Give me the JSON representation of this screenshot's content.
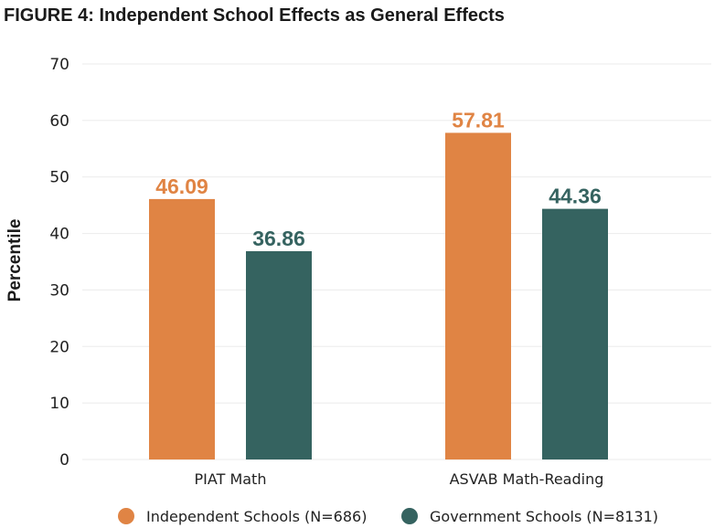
{
  "chart_data": {
    "type": "bar",
    "title": "FIGURE 4: Independent School Effects as General Effects",
    "ylabel": "Percentile",
    "xlabel": "",
    "ylim": [
      0,
      70
    ],
    "yticks": [
      0,
      10,
      20,
      30,
      40,
      50,
      60,
      70
    ],
    "grid": true,
    "legend_position": "bottom",
    "categories": [
      "PIAT Math",
      "ASVAB Math-Reading"
    ],
    "series": [
      {
        "name": "Independent Schools (N=686)",
        "color": "#E08444",
        "values": [
          46.09,
          57.81
        ]
      },
      {
        "name": "Government Schools (N=8131)",
        "color": "#356360",
        "values": [
          36.86,
          44.36
        ]
      }
    ]
  }
}
